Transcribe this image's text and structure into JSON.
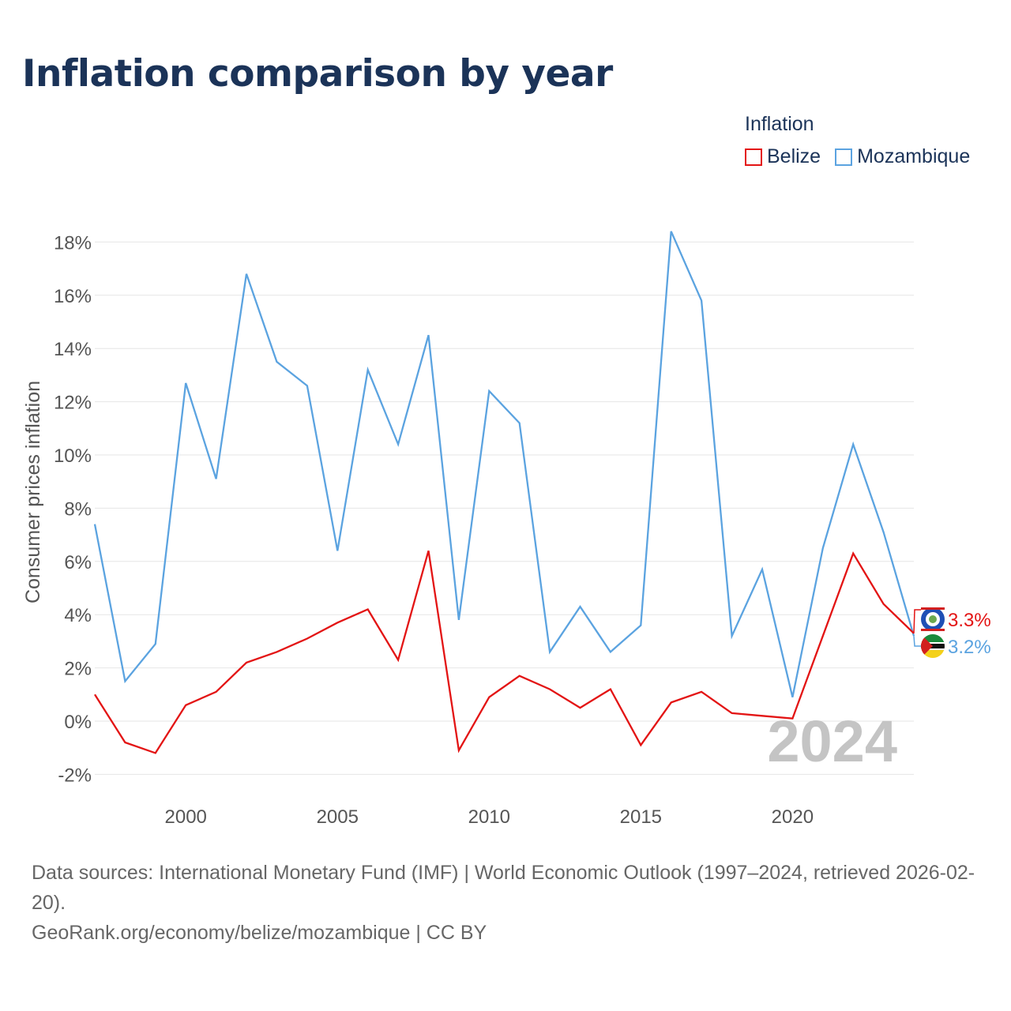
{
  "title": "Inflation comparison by year",
  "legend": {
    "title": "Inflation",
    "items": [
      {
        "label": "Belize",
        "color": "#e31414"
      },
      {
        "label": "Mozambique",
        "color": "#5ba3e0"
      }
    ]
  },
  "chart_data": {
    "type": "line",
    "title": "Inflation comparison by year",
    "xlabel": "",
    "ylabel": "Consumer prices inflation",
    "x": [
      1997,
      1998,
      1999,
      2000,
      2001,
      2002,
      2003,
      2004,
      2005,
      2006,
      2007,
      2008,
      2009,
      2010,
      2011,
      2012,
      2013,
      2014,
      2015,
      2016,
      2017,
      2018,
      2019,
      2020,
      2021,
      2022,
      2023,
      2024
    ],
    "xlim": [
      1997,
      2024
    ],
    "ylim": [
      -3,
      19
    ],
    "x_ticks": [
      "2000",
      "2005",
      "2010",
      "2015",
      "2020"
    ],
    "y_ticks": [
      "-2%",
      "0%",
      "2%",
      "4%",
      "6%",
      "8%",
      "10%",
      "12%",
      "14%",
      "16%",
      "18%"
    ],
    "grid": true,
    "watermark_year": "2024",
    "series": [
      {
        "name": "Belize",
        "color": "#e31414",
        "end_label": "3.3%",
        "values": [
          1.0,
          -0.8,
          -1.2,
          0.6,
          1.1,
          2.2,
          2.6,
          3.1,
          3.7,
          4.2,
          2.3,
          6.4,
          -1.1,
          0.9,
          1.7,
          1.2,
          0.5,
          1.2,
          -0.9,
          0.7,
          1.1,
          0.3,
          0.2,
          0.1,
          3.2,
          6.3,
          4.4,
          3.3
        ]
      },
      {
        "name": "Mozambique",
        "color": "#5ba3e0",
        "end_label": "3.2%",
        "values": [
          7.4,
          1.5,
          2.9,
          12.7,
          9.1,
          16.8,
          13.5,
          12.6,
          6.4,
          13.2,
          10.4,
          14.5,
          3.8,
          12.4,
          11.2,
          2.6,
          4.3,
          2.6,
          3.6,
          18.4,
          15.8,
          3.2,
          5.7,
          0.9,
          6.5,
          10.4,
          7.1,
          3.2
        ]
      }
    ]
  },
  "footer": {
    "sources": "Data sources: International Monetary Fund (IMF) | World Economic Outlook (1997–2024, retrieved 2026-02-20).",
    "link": "GeoRank.org/economy/belize/mozambique | CC BY"
  }
}
